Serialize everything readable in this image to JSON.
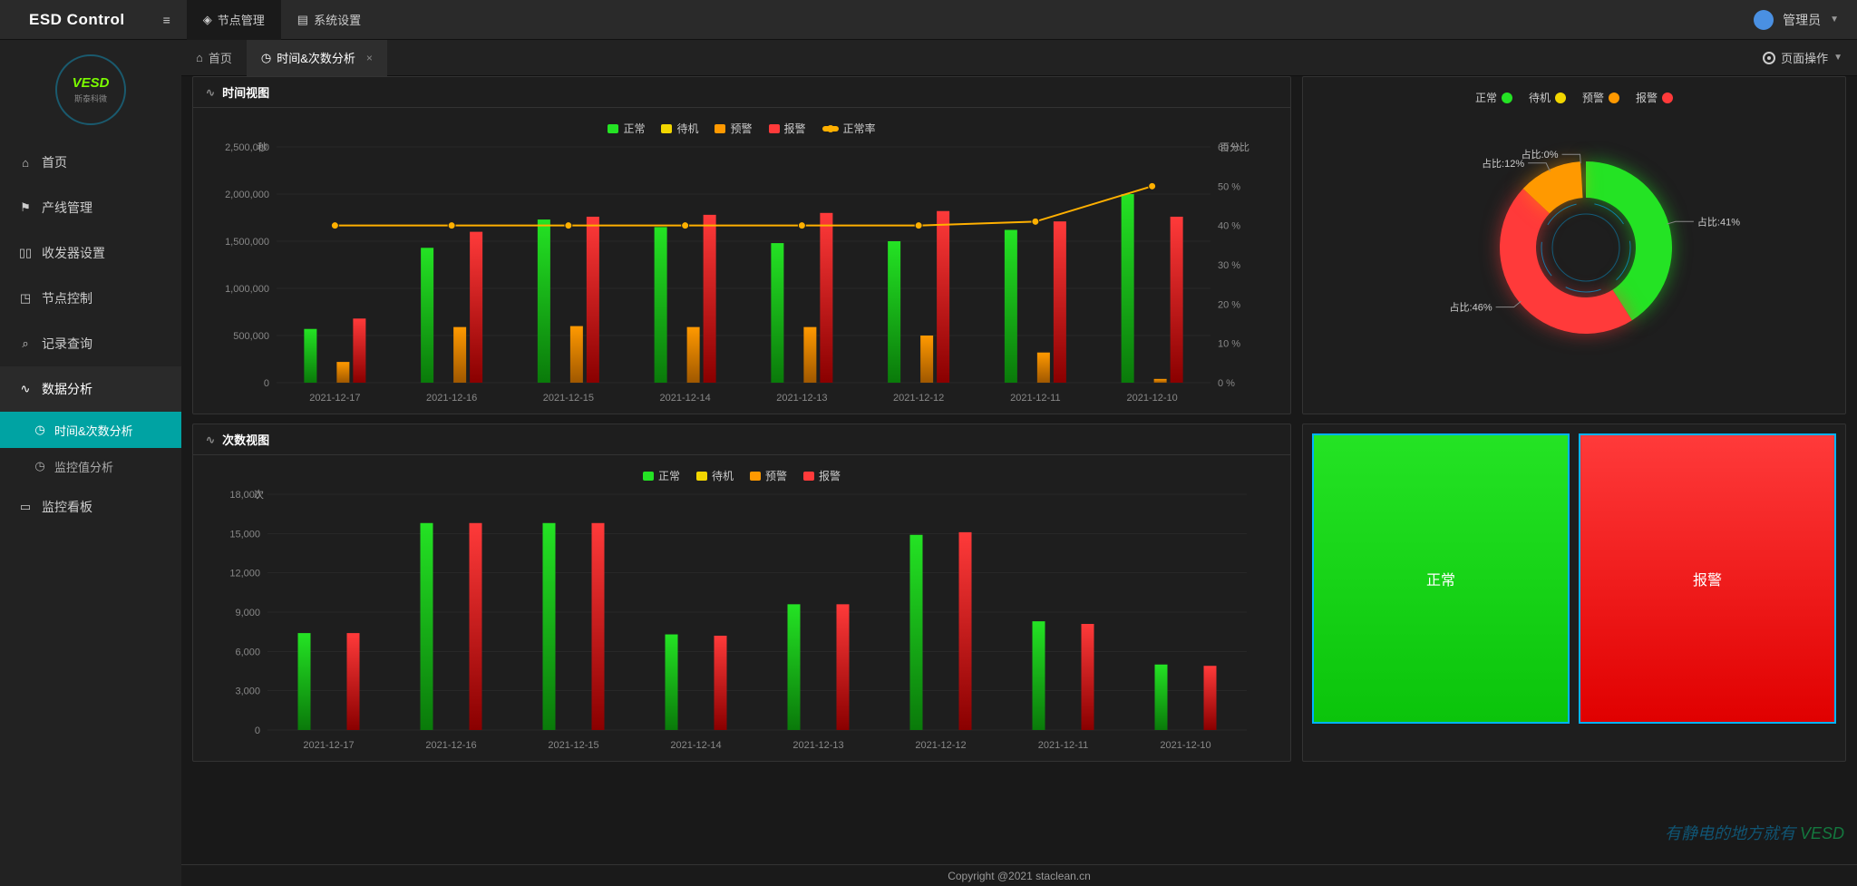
{
  "app_title": "ESD Control",
  "topnav": {
    "node_mgmt": "节点管理",
    "sys_settings": "系统设置"
  },
  "user": {
    "name": "管理员"
  },
  "logo": {
    "text": "VESD",
    "sub": "斯泰科微"
  },
  "sidebar": {
    "home": "首页",
    "line_mgmt": "产线管理",
    "transceiver": "收发器设置",
    "node_ctrl": "节点控制",
    "record_query": "记录查询",
    "data_analysis": "数据分析",
    "sub_time_count": "时间&次数分析",
    "sub_monitor_val": "监控值分析",
    "monitor_board": "监控看板"
  },
  "tabs": {
    "home": "首页",
    "time_count": "时间&次数分析",
    "page_ops": "页面操作"
  },
  "panel_titles": {
    "time_view": "时间视图",
    "count_view": "次数视图"
  },
  "legend": {
    "normal": "正常",
    "standby": "待机",
    "prealarm": "预警",
    "alarm": "报警",
    "normal_rate": "正常率"
  },
  "colors": {
    "green": "#24e324",
    "green_dark": "#0a7a0a",
    "yellow": "#f2d600",
    "yellow_dark": "#9c8a00",
    "orange": "#ff9900",
    "orange_dark": "#a05800",
    "red": "#ff3a3a",
    "red_dark": "#8a0000",
    "line": "#ffb000"
  },
  "time_chart": {
    "type": "bar+line",
    "categories": [
      "2021-12-17",
      "2021-12-16",
      "2021-12-15",
      "2021-12-14",
      "2021-12-13",
      "2021-12-12",
      "2021-12-11",
      "2021-12-10"
    ],
    "y_left_label": "秒",
    "y_right_label": "百分比",
    "y_left": {
      "min": 0,
      "max": 2500000,
      "step": 500000
    },
    "y_right": {
      "min": 0,
      "max": 60,
      "step": 10
    },
    "series": {
      "normal": [
        570000,
        1430000,
        1730000,
        1650000,
        1480000,
        1500000,
        1620000,
        2000000
      ],
      "standby": [
        0,
        0,
        0,
        0,
        0,
        0,
        0,
        0
      ],
      "prealarm": [
        220000,
        590000,
        600000,
        590000,
        590000,
        500000,
        320000,
        40000
      ],
      "alarm": [
        680000,
        1600000,
        1760000,
        1780000,
        1800000,
        1820000,
        1710000,
        1760000
      ]
    },
    "line_pct": [
      40,
      40,
      40,
      40,
      40,
      40,
      41,
      50
    ]
  },
  "donut": {
    "slices": [
      {
        "label": "正常",
        "pct": 41,
        "color": "#24e324"
      },
      {
        "label": "报警",
        "pct": 46,
        "color": "#ff3a3a"
      },
      {
        "label": "预警",
        "pct": 12,
        "color": "#ff9900"
      },
      {
        "label": "待机",
        "pct": 0,
        "color": "#f2d600"
      }
    ],
    "label_prefix": "占比:"
  },
  "count_chart": {
    "type": "bar",
    "categories": [
      "2021-12-17",
      "2021-12-16",
      "2021-12-15",
      "2021-12-14",
      "2021-12-13",
      "2021-12-12",
      "2021-12-11",
      "2021-12-10"
    ],
    "y_label": "次",
    "y": {
      "min": 0,
      "max": 18000,
      "step": 3000
    },
    "series": {
      "normal": [
        7400,
        15800,
        15800,
        7300,
        9600,
        14900,
        8300,
        5000
      ],
      "standby": [
        0,
        0,
        0,
        0,
        0,
        0,
        0,
        0
      ],
      "prealarm": [
        0,
        0,
        0,
        0,
        0,
        0,
        0,
        0
      ],
      "alarm": [
        7400,
        15800,
        15800,
        7200,
        9600,
        15100,
        8100,
        4900
      ]
    }
  },
  "tiles": {
    "normal": "正常",
    "alarm": "报警"
  },
  "footer": "Copyright @2021 staclean.cn",
  "watermark": "有静电的地方就有"
}
